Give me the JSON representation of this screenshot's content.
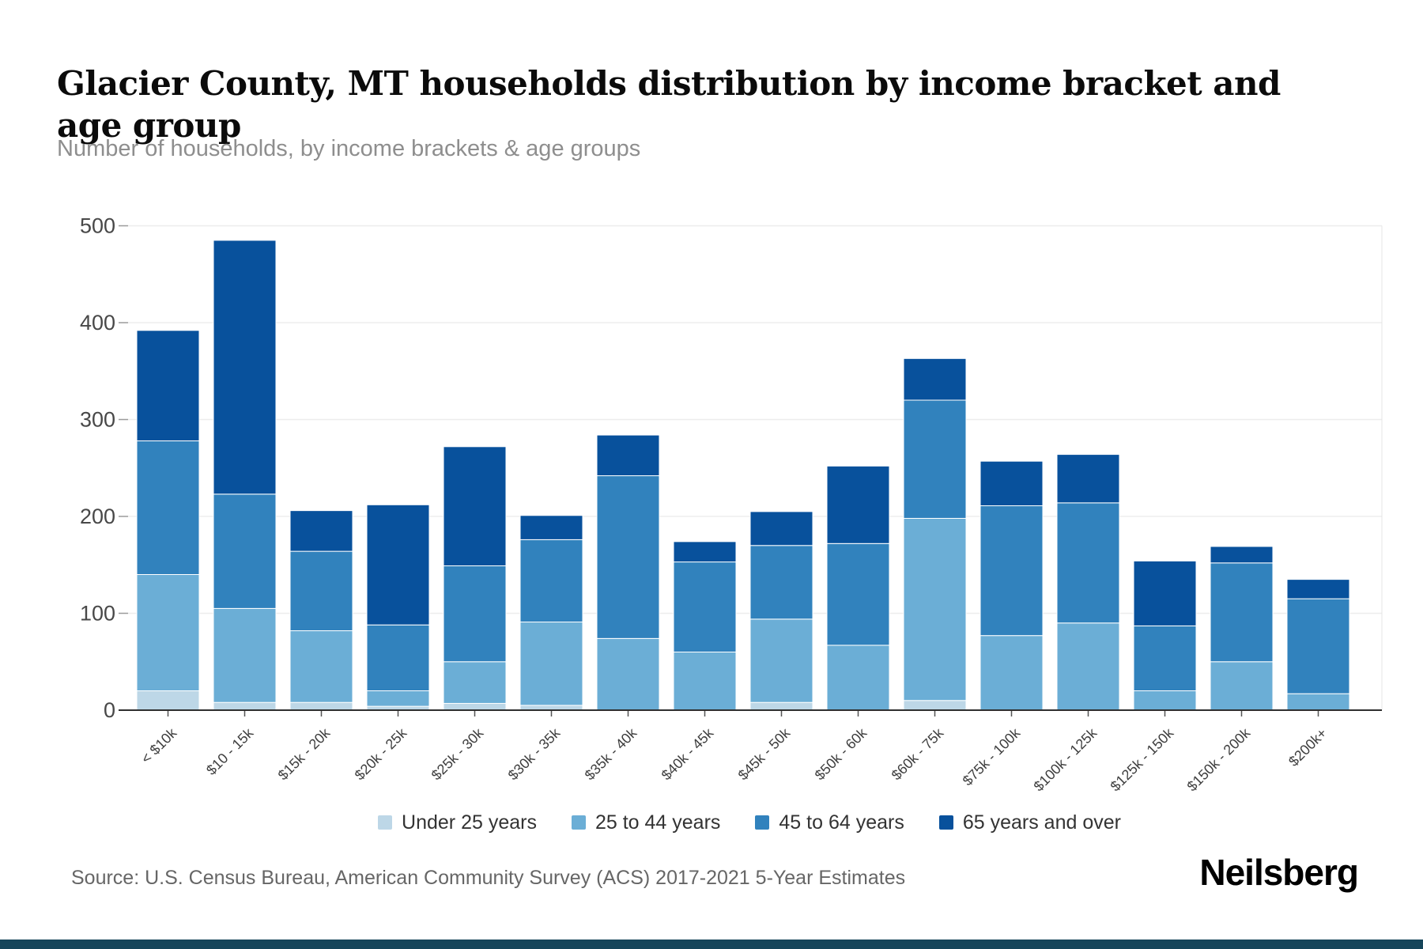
{
  "header": {
    "title": "Glacier County, MT households distribution by income bracket and age group",
    "subtitle": "Number of households, by income brackets & age groups"
  },
  "chart_data": {
    "type": "bar",
    "stacked": true,
    "title": "Glacier County, MT households distribution by income bracket and age group",
    "subtitle": "Number of households, by income brackets & age groups",
    "categories": [
      "< $10k",
      "$10 - 15k",
      "$15k - 20k",
      "$20k - 25k",
      "$25k - 30k",
      "$30k - 35k",
      "$35k - 40k",
      "$40k - 45k",
      "$45k - 50k",
      "$50k - 60k",
      "$60k - 75k",
      "$75k - 100k",
      "$100k - 125k",
      "$125k - 150k",
      "$150k - 200k",
      "$200k+"
    ],
    "series": [
      {
        "name": "Under 25 years",
        "color": "#bdd7e7",
        "values": [
          20,
          8,
          8,
          4,
          7,
          5,
          0,
          0,
          8,
          0,
          10,
          0,
          0,
          0,
          0,
          0
        ]
      },
      {
        "name": "25 to 44 years",
        "color": "#6baed6",
        "values": [
          120,
          97,
          74,
          16,
          43,
          86,
          74,
          60,
          86,
          67,
          188,
          77,
          90,
          20,
          50,
          17
        ]
      },
      {
        "name": "45 to 64 years",
        "color": "#3182bd",
        "values": [
          138,
          118,
          82,
          68,
          99,
          85,
          168,
          93,
          76,
          105,
          122,
          134,
          124,
          67,
          102,
          98
        ]
      },
      {
        "name": "65 years and over",
        "color": "#08519c",
        "values": [
          114,
          262,
          42,
          124,
          123,
          25,
          42,
          21,
          35,
          80,
          43,
          46,
          50,
          67,
          17,
          20
        ]
      }
    ],
    "totals": [
      392,
      485,
      206,
      212,
      272,
      201,
      284,
      174,
      205,
      252,
      363,
      257,
      264,
      154,
      169,
      135
    ],
    "xlabel": "",
    "ylabel": "",
    "ylim": [
      0,
      500
    ],
    "yticks": [
      0,
      100,
      200,
      300,
      400,
      500
    ],
    "grid": true,
    "legend_position": "bottom",
    "axis_color": "#2f2f2f",
    "grid_color": "#ededed",
    "tick_label_color": "#484848",
    "category_label_color": "#3e3e3e"
  },
  "footer": {
    "source": "Source: U.S. Census Bureau, American Community Survey (ACS) 2017-2021 5-Year Estimates",
    "logo": "Neilsberg"
  }
}
